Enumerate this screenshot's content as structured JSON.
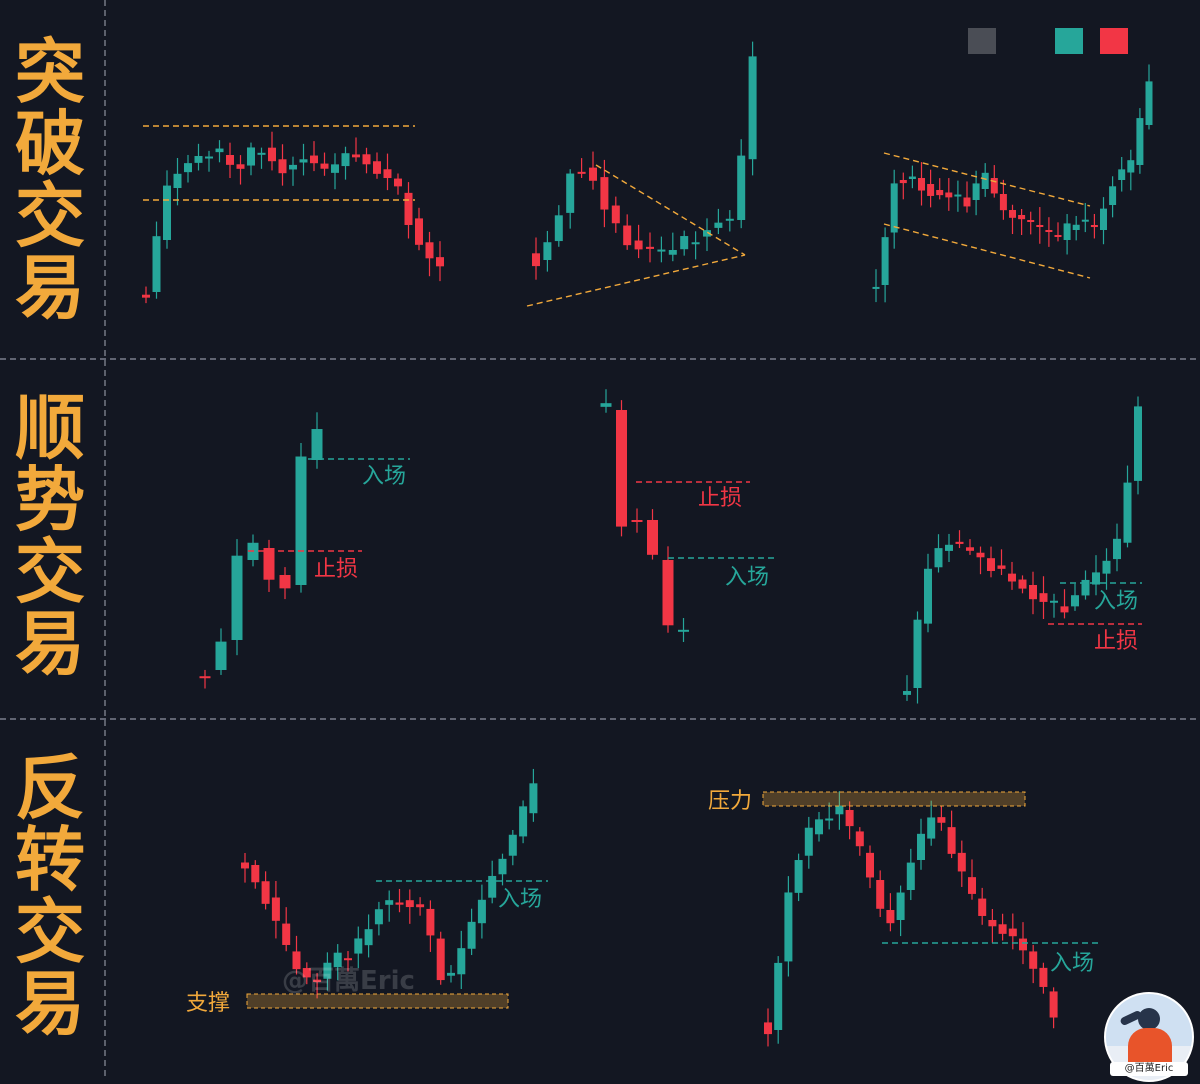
{
  "colors": {
    "background": "#131722",
    "bull": "#26a69a",
    "bear": "#f23645",
    "accent": "#f2a93b",
    "divider": "#7b7f8c",
    "neutral": "#4a4d55"
  },
  "legend": {
    "swatches": [
      "#4a4d55",
      "#26a69a",
      "#f23645"
    ]
  },
  "rows": [
    {
      "title": [
        "突",
        "破",
        "交",
        "易"
      ]
    },
    {
      "title": [
        "顺",
        "势",
        "交",
        "易"
      ]
    },
    {
      "title": [
        "反",
        "转",
        "交",
        "易"
      ]
    }
  ],
  "labels": {
    "entry": "入场",
    "stop": "止损",
    "support": "支撑",
    "resistance": "压力"
  },
  "watermark": "@百萬Eric",
  "badge": {
    "label": "@百萬Eric",
    "icon": "avatar-icon"
  }
}
